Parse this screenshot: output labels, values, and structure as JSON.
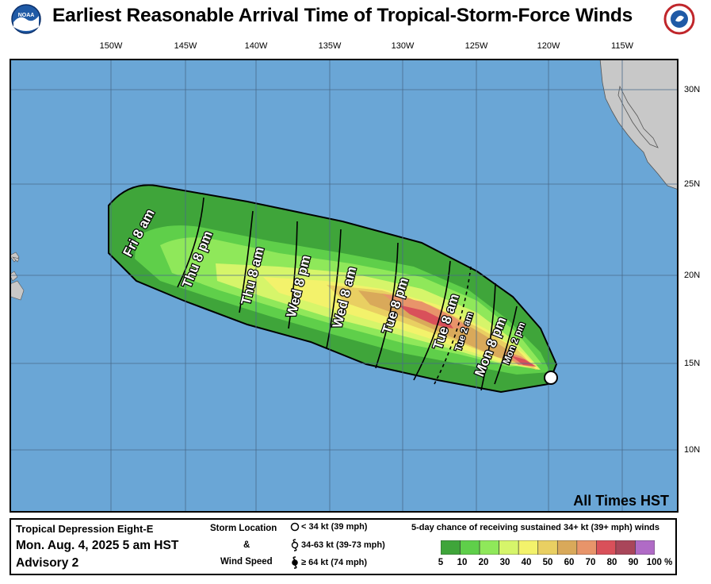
{
  "title": "Earliest Reasonable Arrival Time of Tropical-Storm-Force Winds",
  "logos": {
    "left": "noaa-logo",
    "left_text": "NOAA",
    "right": "nws-logo"
  },
  "longitude_labels": [
    "150W",
    "145W",
    "140W",
    "135W",
    "130W",
    "125W",
    "120W",
    "115W"
  ],
  "latitude_labels": [
    "30N",
    "25N",
    "20N",
    "15N",
    "10N"
  ],
  "time_labels": [
    "Fri 8 am",
    "Thu 8 pm",
    "Thu 8 am",
    "Wed 8 pm",
    "Wed 8 am",
    "Tue 8 pm",
    "Tue 8 am",
    "Tue 2 am",
    "Mon 8 pm",
    "Mon 2 pm"
  ],
  "timezone_note": "All Times HST",
  "footer": {
    "storm_name": "Tropical Depression Eight-E",
    "advisory_date": "Mon. Aug. 4, 2025  5 am HST",
    "advisory_number": "Advisory 2",
    "storm_location_title": "Storm Location",
    "amp": "&",
    "wind_speed_title": "Wind Speed",
    "symbols": [
      {
        "icon": "open-circle-icon",
        "label": "< 34 kt (39 mph)"
      },
      {
        "icon": "tropical-storm-icon",
        "label": "34-63 kt (39-73 mph)"
      },
      {
        "icon": "hurricane-icon",
        "label": "≥ 64 kt (74 mph)"
      }
    ],
    "probability_title": "5-day chance of receiving sustained 34+ kt (39+ mph) winds",
    "probability_scale": [
      "5",
      "10",
      "20",
      "30",
      "40",
      "50",
      "60",
      "70",
      "80",
      "90",
      "100 %"
    ],
    "probability_colors": [
      "#3fa53a",
      "#5fcf4a",
      "#8fe85a",
      "#d6f56a",
      "#f3f26b",
      "#e9cf62",
      "#d9a95a",
      "#e8946a",
      "#d9505a",
      "#a9465a",
      "#b06bc6"
    ]
  },
  "colors": {
    "ocean": "#6aa6d6",
    "land": "#c8c8c8",
    "grid": "#4a6a8a"
  }
}
